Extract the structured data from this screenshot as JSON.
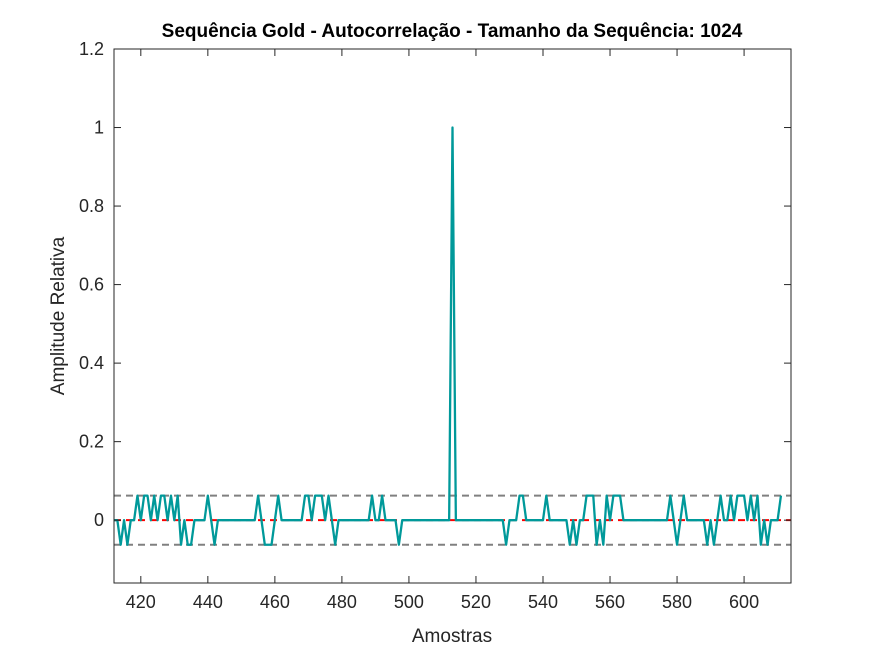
{
  "chart_data": {
    "type": "line",
    "title": "Sequência Gold - Autocorrelação - Tamanho da Sequência: 1024",
    "xlabel": "Amostras",
    "ylabel": "Amplitude Relativa",
    "xlim": [
      412,
      614
    ],
    "ylim": [
      -0.16,
      1.2
    ],
    "xticks": [
      "420",
      "440",
      "460",
      "480",
      "500",
      "520",
      "540",
      "560",
      "580",
      "600"
    ],
    "yticks": [
      "0",
      "0.2",
      "0.4",
      "0.6",
      "0.8",
      "1",
      "1.2"
    ],
    "grid": false,
    "series": [
      {
        "color": "#00999a",
        "style": "solid",
        "x_start": 412,
        "values": [
          0,
          0,
          -0.0625,
          0,
          -0.0625,
          0,
          0,
          0.0625,
          0,
          0.0625,
          0.0625,
          0,
          0.0625,
          0,
          0.0625,
          0.0625,
          0,
          0.0625,
          0,
          0.0625,
          -0.0625,
          0,
          -0.0625,
          -0.0625,
          0,
          0,
          0,
          0,
          0.0625,
          0,
          -0.0625,
          0,
          0,
          0,
          0,
          0,
          0,
          0,
          0,
          0,
          0,
          0,
          0,
          0.0625,
          0,
          -0.0625,
          -0.0625,
          -0.0625,
          0,
          0.0625,
          0,
          0,
          0,
          0,
          0,
          0,
          0,
          0.0625,
          0.0625,
          0,
          0.0625,
          0.0625,
          0.0625,
          0,
          0.0625,
          0,
          -0.0625,
          0,
          0,
          0,
          0,
          0,
          0,
          0,
          0,
          0,
          0,
          0.0625,
          0,
          0,
          0.0625,
          0,
          0,
          0,
          0,
          -0.0625,
          0,
          0,
          0,
          0,
          0,
          0,
          0,
          0,
          0,
          0,
          0,
          0,
          0,
          0,
          0,
          1,
          0,
          0,
          0,
          0,
          0,
          0,
          0,
          0,
          0,
          0,
          0,
          0,
          0,
          0,
          0,
          -0.0625,
          0,
          0,
          0,
          0.0625,
          0.0625,
          0,
          0,
          0,
          0,
          0,
          0,
          0.0625,
          0,
          0,
          0,
          0,
          0,
          0,
          -0.0625,
          0,
          -0.0625,
          0,
          0,
          0.0625,
          0.0625,
          0.0625,
          -0.0625,
          0,
          -0.0625,
          0.0625,
          0,
          0.0625,
          0.0625,
          0.0625,
          0,
          0,
          0,
          0,
          0,
          0,
          0,
          0,
          0,
          0,
          0,
          0,
          0,
          0,
          0.0625,
          0,
          -0.0625,
          0,
          0.0625,
          0,
          0,
          0,
          0,
          0,
          0,
          -0.0625,
          0,
          -0.0625,
          0,
          0.0625,
          0,
          0,
          0.0625,
          0,
          0.0625,
          0.0625,
          0.0625,
          0,
          0.0625,
          0,
          0.0625,
          -0.0625,
          0,
          -0.0625,
          0,
          0,
          0,
          0.0625
        ]
      },
      {
        "color": "#ff0000",
        "style": "dashed",
        "values": [
          0
        ]
      },
      {
        "color": "#808080",
        "style": "dashed",
        "values": [
          0.0625
        ]
      },
      {
        "color": "#808080",
        "style": "dashed",
        "values": [
          -0.0625
        ]
      }
    ]
  }
}
